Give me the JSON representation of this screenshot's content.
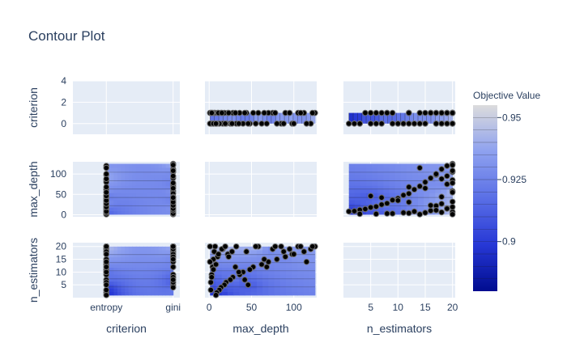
{
  "chart_data": {
    "type": "contour",
    "title": "Contour Plot",
    "params": [
      "criterion",
      "max_depth",
      "n_estimators"
    ],
    "axes": {
      "criterion": {
        "categorical": true,
        "categories": [
          "entropy",
          "gini"
        ],
        "range": [
          -0.5,
          1.1
        ],
        "tick_labels": [
          "entropy",
          "gini"
        ],
        "y_range": [
          -1,
          4
        ],
        "y_ticks": [
          0,
          2,
          4
        ]
      },
      "max_depth": {
        "range": [
          -5,
          127
        ],
        "ticks": [
          0,
          50,
          100
        ],
        "y_range": [
          -5,
          130
        ],
        "y_ticks": [
          0,
          50,
          100
        ]
      },
      "n_estimators": {
        "range": [
          0,
          20.5
        ],
        "ticks": [
          5,
          10,
          15,
          20
        ],
        "y_range": [
          0,
          21.5
        ],
        "y_ticks": [
          5,
          10,
          15,
          20
        ]
      }
    },
    "colorbar": {
      "title": "Objective Value",
      "min": 0.88,
      "max": 0.955,
      "ticks": [
        0.9,
        0.925,
        0.95
      ],
      "tick_labels": [
        "0.9",
        "0.925",
        "0.95"
      ]
    },
    "colorscale": [
      "#000c8f",
      "#2738d6",
      "#5a6fe6",
      "#8ea1ef",
      "#dcdcdc"
    ],
    "trials": {
      "criterion": [
        "gini",
        "entropy",
        "gini",
        "gini",
        "entropy",
        "gini",
        "entropy",
        "entropy",
        "gini",
        "gini",
        "entropy",
        "gini",
        "gini",
        "entropy",
        "gini",
        "entropy",
        "gini",
        "entropy",
        "gini",
        "entropy",
        "gini",
        "entropy",
        "gini",
        "entropy",
        "gini",
        "entropy",
        "gini",
        "entropy",
        "entropy",
        "gini",
        "gini",
        "entropy",
        "gini",
        "entropy",
        "gini",
        "entropy",
        "gini",
        "entropy",
        "gini",
        "entropy",
        "entropy",
        "gini",
        "gini",
        "entropy",
        "gini",
        "entropy",
        "gini",
        "entropy",
        "gini",
        "entropy",
        "entropy",
        "gini",
        "gini",
        "entropy",
        "gini",
        "entropy",
        "gini",
        "entropy",
        "gini",
        "entropy"
      ],
      "max_depth": [
        125,
        120,
        112,
        105,
        98,
        90,
        85,
        80,
        75,
        70,
        62,
        58,
        52,
        48,
        44,
        40,
        36,
        32,
        28,
        25,
        22,
        20,
        18,
        16,
        14,
        12,
        10,
        9,
        8,
        7,
        6,
        5,
        4,
        3,
        2,
        2,
        1,
        1,
        3,
        5,
        8,
        11,
        15,
        19,
        23,
        27,
        31,
        35,
        42,
        46,
        55,
        65,
        78,
        88,
        95,
        100,
        108,
        115,
        122,
        68
      ],
      "n_estimators": [
        20,
        19,
        18,
        20,
        17,
        16,
        20,
        15,
        19,
        14,
        13,
        20,
        12,
        11,
        18,
        10,
        9,
        20,
        8,
        7,
        17,
        6,
        5,
        19,
        4,
        3,
        16,
        2,
        1,
        20,
        18,
        15,
        12,
        9,
        6,
        3,
        20,
        14,
        8,
        11,
        13,
        17,
        19,
        20,
        16,
        18,
        12,
        10,
        7,
        5,
        20,
        15,
        20,
        18,
        19,
        17,
        20,
        14,
        20,
        12
      ],
      "values": [
        0.95,
        0.93,
        0.92,
        0.9,
        0.94,
        0.91,
        0.95,
        0.93,
        0.89,
        0.92,
        0.94,
        0.95,
        0.93,
        0.91,
        0.94,
        0.92,
        0.9,
        0.95,
        0.93,
        0.94,
        0.92,
        0.9,
        0.91,
        0.95,
        0.93,
        0.89,
        0.92,
        0.9,
        0.88,
        0.95,
        0.94,
        0.93,
        0.92,
        0.91,
        0.9,
        0.89,
        0.95,
        0.93,
        0.91,
        0.92,
        0.93,
        0.94,
        0.95,
        0.95,
        0.94,
        0.94,
        0.93,
        0.92,
        0.91,
        0.9,
        0.95,
        0.93,
        0.95,
        0.94,
        0.95,
        0.94,
        0.95,
        0.93,
        0.95,
        0.92
      ]
    }
  }
}
